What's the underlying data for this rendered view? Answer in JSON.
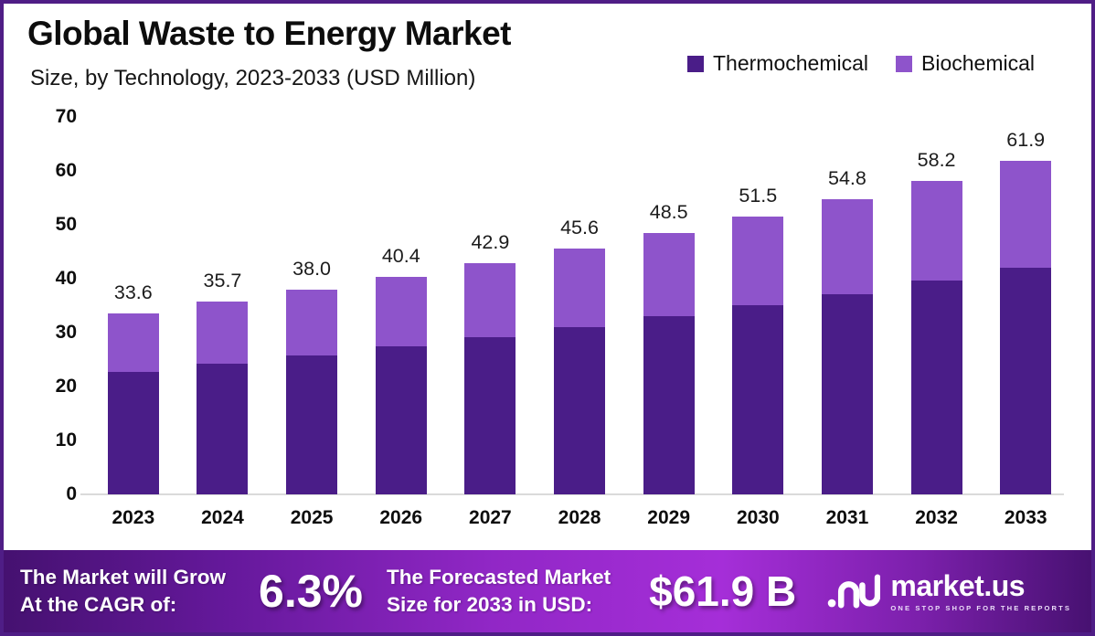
{
  "header": {
    "title": "Global Waste to Energy Market",
    "subtitle": "Size, by Technology, 2023-2033 (USD Million)"
  },
  "legend": {
    "items": [
      {
        "label": "Thermochemical",
        "color": "#4A1D88"
      },
      {
        "label": "Biochemical",
        "color": "#8E54CB"
      }
    ]
  },
  "chart_data": {
    "type": "bar",
    "stacked": true,
    "title": "Global Waste to Energy Market",
    "subtitle": "Size, by Technology, 2023-2033 (USD Million)",
    "categories": [
      "2023",
      "2024",
      "2025",
      "2026",
      "2027",
      "2028",
      "2029",
      "2030",
      "2031",
      "2032",
      "2033"
    ],
    "series": [
      {
        "name": "Thermochemical",
        "color": "#4A1D88",
        "values": [
          22.7,
          24.2,
          25.8,
          27.4,
          29.2,
          31.0,
          33.0,
          35.0,
          37.2,
          39.6,
          42.0
        ]
      },
      {
        "name": "Biochemical",
        "color": "#8E54CB",
        "values": [
          10.9,
          11.5,
          12.2,
          13.0,
          13.7,
          14.6,
          15.5,
          16.5,
          17.6,
          18.6,
          19.9
        ]
      }
    ],
    "totals_labels": [
      "33.6",
      "35.7",
      "38.0",
      "40.4",
      "42.9",
      "45.6",
      "48.5",
      "51.5",
      "54.8",
      "58.2",
      "61.9"
    ],
    "xlabel": "",
    "ylabel": "",
    "ylim": [
      0,
      70
    ],
    "yticks": [
      0,
      10,
      20,
      30,
      40,
      50,
      60,
      70
    ],
    "grid": false,
    "legend_position": "top-right"
  },
  "banner": {
    "left_line1": "The Market will Grow",
    "left_line2": "At the CAGR of:",
    "cagr_value": "6.3%",
    "mid_line1": "The Forecasted Market",
    "mid_line2": "Size for 2033 in USD:",
    "forecast_value": "$61.9 B",
    "logo_text": "market.us",
    "logo_tagline": "ONE STOP SHOP FOR THE REPORTS",
    "logo_icon": "market-us-logo-icon"
  },
  "colors": {
    "border": "#4F1D86",
    "thermochemical": "#4A1D88",
    "biochemical": "#8E54CB",
    "banner_bright": "#A52ED8",
    "banner_dark": "#451170"
  }
}
